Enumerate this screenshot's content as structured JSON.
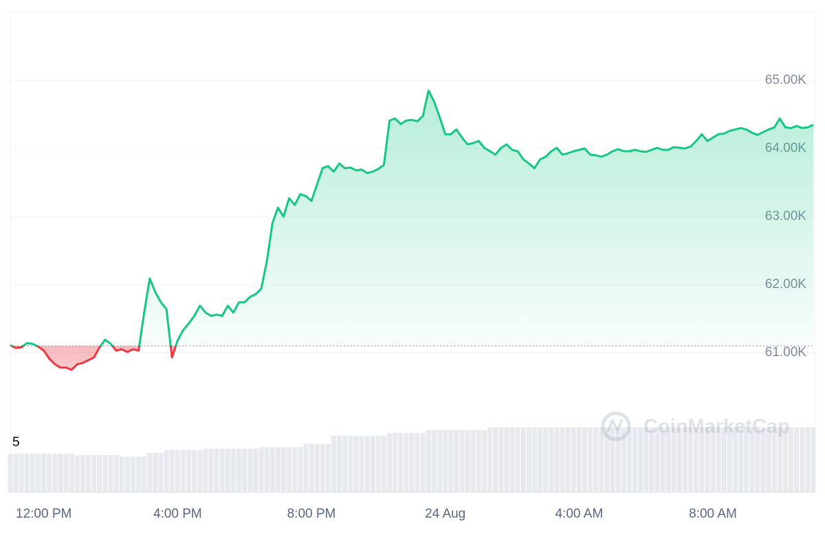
{
  "chart_data": [
    {
      "type": "line",
      "series": [
        {
          "color": "#16c784",
          "color_below": "#ea3943",
          "values": [
            61110,
            61070,
            61080,
            61140,
            61130,
            61090,
            61030,
            60910,
            60830,
            60780,
            60780,
            60750,
            60830,
            60850,
            60890,
            60930,
            61080,
            61190,
            61130,
            61030,
            61050,
            61010,
            61050,
            61030,
            61590,
            62090,
            61890,
            61740,
            61640,
            60930,
            61180,
            61330,
            61430,
            61540,
            61690,
            61590,
            61540,
            61560,
            61540,
            61690,
            61590,
            61740,
            61740,
            61820,
            61860,
            61940,
            62340,
            62900,
            63130,
            63000,
            63270,
            63170,
            63330,
            63300,
            63230,
            63470,
            63710,
            63740,
            63660,
            63780,
            63710,
            63720,
            63680,
            63690,
            63640,
            63660,
            63700,
            63760,
            64410,
            64440,
            64360,
            64410,
            64420,
            64400,
            64480,
            64850,
            64690,
            64460,
            64210,
            64210,
            64280,
            64160,
            64060,
            64080,
            64110,
            64010,
            63960,
            63910,
            64010,
            64060,
            63980,
            63960,
            63840,
            63780,
            63710,
            63840,
            63880,
            63960,
            64010,
            63910,
            63930,
            63960,
            63980,
            64000,
            63910,
            63900,
            63880,
            63910,
            63960,
            63990,
            63960,
            63960,
            63980,
            63960,
            63950,
            63980,
            64010,
            63980,
            63980,
            64020,
            64010,
            64000,
            64030,
            64110,
            64210,
            64110,
            64160,
            64210,
            64220,
            64260,
            64280,
            64300,
            64280,
            64230,
            64200,
            64240,
            64280,
            64310,
            64440,
            64310,
            64300,
            64330,
            64300,
            64310,
            64350
          ]
        }
      ],
      "baseline": 61100,
      "xlim": [
        0,
        144
      ],
      "xticks": [
        {
          "value": 6,
          "label": "12:00 PM"
        },
        {
          "value": 30,
          "label": "4:00 PM"
        },
        {
          "value": 54,
          "label": "8:00 PM"
        },
        {
          "value": 78,
          "label": "24 Aug"
        },
        {
          "value": 102,
          "label": "4:00 AM"
        },
        {
          "value": 126,
          "label": "8:00 AM"
        }
      ],
      "ylim": [
        60000,
        66000
      ],
      "yticks": [
        {
          "value": 61000,
          "label": "61.00K"
        },
        {
          "value": 62000,
          "label": "62.00K"
        },
        {
          "value": 63000,
          "label": "63.00K"
        },
        {
          "value": 64000,
          "label": "64.00K"
        },
        {
          "value": 65000,
          "label": "65.00K"
        }
      ],
      "grid": true,
      "watermark": "CoinMarketCap"
    },
    {
      "type": "bar",
      "label": "5",
      "color": "#e6e9ee",
      "ylim": [
        0,
        100
      ],
      "values": [
        54,
        54,
        54,
        54,
        54,
        54,
        54,
        54,
        54,
        54,
        54,
        54,
        52,
        52,
        52,
        52,
        52,
        52,
        52,
        52,
        50,
        50,
        50,
        50,
        50,
        55,
        55,
        55,
        59,
        59,
        59,
        59,
        59,
        59,
        59,
        61,
        61,
        61,
        61,
        61,
        61,
        61,
        61,
        61,
        61,
        63,
        63,
        63,
        63,
        63,
        63,
        63,
        63,
        68,
        68,
        68,
        68,
        68,
        79,
        79,
        79,
        79,
        79,
        79,
        79,
        79,
        79,
        79,
        83,
        83,
        83,
        83,
        83,
        83,
        83,
        87,
        87,
        87,
        87,
        87,
        87,
        87,
        87,
        87,
        87,
        87,
        91,
        91,
        91,
        91,
        91,
        91,
        91,
        91,
        91,
        91,
        91,
        91,
        91,
        91,
        91,
        91,
        91,
        91,
        91,
        91,
        91,
        91,
        91,
        91,
        91,
        91,
        91,
        91,
        91,
        91,
        91,
        91,
        91,
        91,
        91,
        91,
        91,
        91,
        91,
        91,
        91,
        91,
        91,
        91,
        91,
        91,
        91,
        91,
        91,
        91,
        91,
        91,
        91,
        91,
        91,
        91,
        91,
        91,
        91
      ]
    }
  ]
}
